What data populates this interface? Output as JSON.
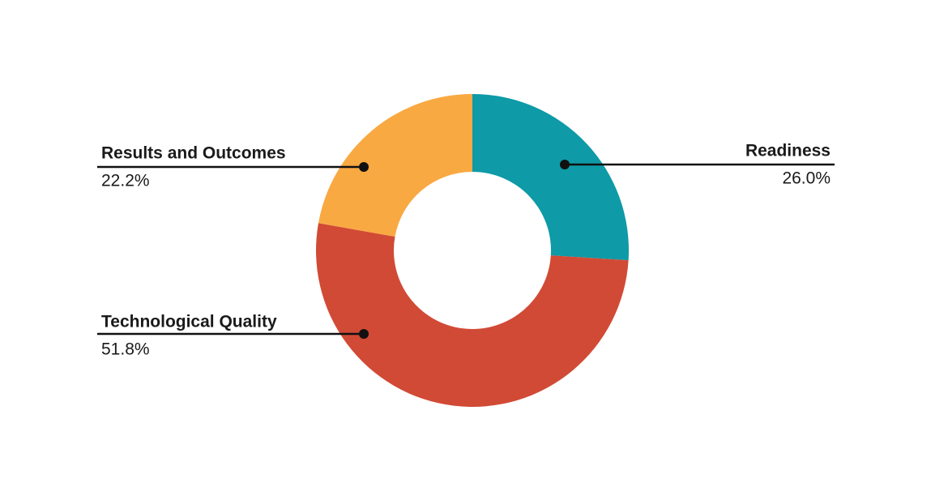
{
  "chart_data": {
    "type": "donut",
    "categories": [
      "Readiness",
      "Technological Quality",
      "Results and Outcomes"
    ],
    "values": [
      26.0,
      51.8,
      22.2
    ],
    "value_labels": [
      "26.0%",
      "51.8%",
      "22.2%"
    ],
    "colors": [
      "#0e9aa7",
      "#d14a35",
      "#f9a942"
    ]
  }
}
